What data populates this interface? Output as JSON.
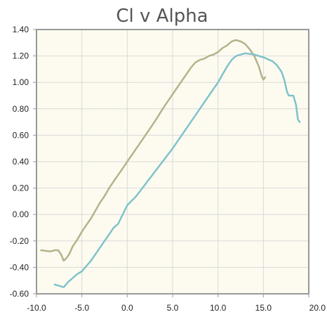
{
  "chart_data": {
    "type": "line",
    "title": "Cl v Alpha",
    "xlabel": "",
    "ylabel": "",
    "xlim": [
      -10,
      20
    ],
    "ylim": [
      -0.6,
      1.4
    ],
    "x_ticks": [
      -10,
      -5,
      0,
      5,
      10,
      15,
      20
    ],
    "x_tick_labels": [
      "-10.0",
      "-5.0",
      "0.0",
      "5.0",
      "10.0",
      "15.0",
      "20.0"
    ],
    "y_ticks": [
      -0.6,
      -0.4,
      -0.2,
      0.0,
      0.2,
      0.4,
      0.6,
      0.8,
      1.0,
      1.2,
      1.4
    ],
    "y_tick_labels": [
      "-0.60",
      "-0.40",
      "-0.20",
      "0.00",
      "0.20",
      "0.40",
      "0.60",
      "0.80",
      "1.00",
      "1.20",
      "1.40"
    ],
    "grid": true,
    "legend": false,
    "colors": {
      "background": "#fdfbf0",
      "grid": "#d9d9d9",
      "axis": "#999999",
      "series_1": "#b3b38a",
      "series_2": "#7fc3c9"
    },
    "series": [
      {
        "color": "#b3b38a",
        "x": [
          -9.5,
          -9.0,
          -8.5,
          -8.0,
          -7.6,
          -7.3,
          -7.0,
          -6.7,
          -6.4,
          -6.0,
          -5.5,
          -5.0,
          -4.5,
          -4.0,
          -3.5,
          -3.0,
          -2.5,
          -2.0,
          -1.5,
          -1.0,
          -0.5,
          0.0,
          1.0,
          2.0,
          3.0,
          4.0,
          5.0,
          6.0,
          7.0,
          7.5,
          8.0,
          8.5,
          9.0,
          9.5,
          10.0,
          10.5,
          11.0,
          11.5,
          12.0,
          12.5,
          13.0,
          13.5,
          14.0,
          14.5,
          14.8,
          15.0,
          15.2
        ],
        "y": [
          -0.27,
          -0.275,
          -0.28,
          -0.27,
          -0.27,
          -0.3,
          -0.35,
          -0.33,
          -0.3,
          -0.24,
          -0.19,
          -0.13,
          -0.08,
          -0.03,
          0.03,
          0.09,
          0.14,
          0.2,
          0.25,
          0.3,
          0.35,
          0.4,
          0.5,
          0.6,
          0.7,
          0.81,
          0.91,
          1.01,
          1.11,
          1.15,
          1.17,
          1.18,
          1.2,
          1.21,
          1.23,
          1.26,
          1.28,
          1.31,
          1.32,
          1.31,
          1.29,
          1.25,
          1.2,
          1.12,
          1.05,
          1.02,
          1.04
        ]
      },
      {
        "color": "#7fc3c9",
        "x": [
          -8.0,
          -7.5,
          -7.0,
          -6.5,
          -6.0,
          -5.5,
          -5.0,
          -4.5,
          -4.0,
          -3.5,
          -3.0,
          -2.5,
          -2.0,
          -1.5,
          -1.0,
          0.0,
          1.0,
          2.0,
          3.0,
          4.0,
          5.0,
          6.0,
          7.0,
          8.0,
          9.0,
          10.0,
          10.5,
          11.0,
          11.5,
          12.0,
          12.5,
          13.0,
          14.0,
          15.0,
          16.0,
          16.5,
          17.0,
          17.3,
          17.6,
          17.8,
          18.0,
          18.3,
          18.6,
          18.8,
          19.0
        ],
        "y": [
          -0.53,
          -0.54,
          -0.55,
          -0.51,
          -0.48,
          -0.45,
          -0.43,
          -0.39,
          -0.35,
          -0.3,
          -0.25,
          -0.2,
          -0.15,
          -0.1,
          -0.07,
          0.07,
          0.14,
          0.23,
          0.32,
          0.41,
          0.5,
          0.6,
          0.7,
          0.8,
          0.9,
          1.0,
          1.06,
          1.12,
          1.17,
          1.2,
          1.21,
          1.22,
          1.21,
          1.19,
          1.16,
          1.13,
          1.08,
          1.02,
          0.93,
          0.9,
          0.9,
          0.9,
          0.83,
          0.72,
          0.7
        ]
      }
    ]
  }
}
